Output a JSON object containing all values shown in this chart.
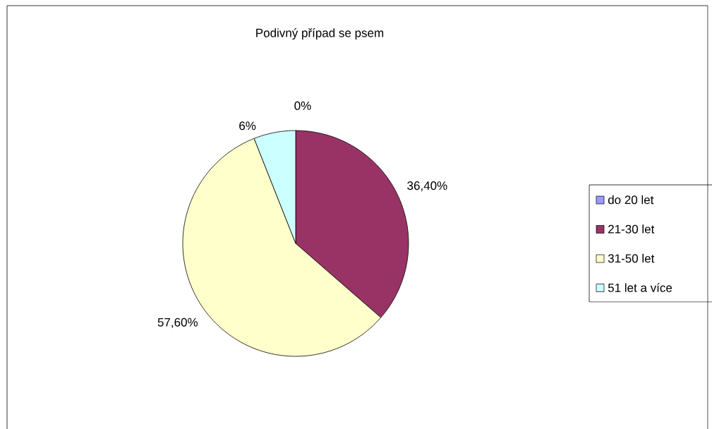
{
  "chart_data": {
    "type": "pie",
    "title": "Podivný případ se psem",
    "categories": [
      "do 20 let",
      "21-30 let",
      "31-50 let",
      "51 let a více"
    ],
    "values": [
      0,
      36.4,
      57.6,
      6
    ],
    "colors": [
      "#9999ff",
      "#993366",
      "#ffffcc",
      "#ccffff"
    ],
    "value_labels": [
      "0%",
      "36,40%",
      "57,60%",
      "6%"
    ],
    "legend": "right"
  }
}
